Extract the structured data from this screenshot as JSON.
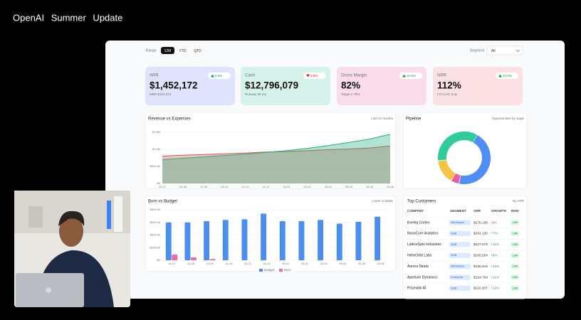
{
  "header": {
    "title": "OpenAI Summer Update"
  },
  "controls": {
    "range_label": "Range",
    "range_options": [
      "12M",
      "YTD",
      "QTD"
    ],
    "segment_label": "Segment",
    "segment_value": "All"
  },
  "kpis": [
    {
      "label": "ARR",
      "value": "$1,452,172",
      "change": "4.8%",
      "trend": "up",
      "note": "MRR $121,014"
    },
    {
      "label": "Cash",
      "value": "$12,796,079",
      "change": "3.8%",
      "trend": "down",
      "note": "Runway 38 mo"
    },
    {
      "label": "Gross Margin",
      "value": "82%",
      "change": "10.5%",
      "trend": "up",
      "note": "Target ≥ 78%"
    },
    {
      "label": "NRR",
      "value": "112%",
      "change": "12.6%",
      "trend": "up",
      "note": "LTV:CAC 5.6x"
    }
  ],
  "chart_data": [
    {
      "type": "area",
      "title": "Revenue vs Expenses",
      "note": "Last 12 months",
      "categories": [
        "24-07",
        "24-08",
        "24-09",
        "24-10",
        "24-11",
        "24-12",
        "25-01",
        "25-02",
        "25-03",
        "25-04",
        "25-05",
        "25-06"
      ],
      "series": [
        {
          "color": "#d9534f",
          "values": [
            800000,
            830000,
            850000,
            870000,
            890000,
            920000,
            940000,
            960000,
            990000,
            1010000,
            1040000,
            1100000
          ]
        },
        {
          "color": "#22b07d",
          "values": [
            700000,
            740000,
            780000,
            820000,
            860000,
            910000,
            960000,
            1030000,
            1110000,
            1200000,
            1300000,
            1440000
          ]
        }
      ],
      "ylim": [
        0,
        1500000
      ],
      "yticks": [
        {
          "value": 0,
          "label": "$0"
        },
        {
          "value": 500000,
          "label": "$500.0k"
        },
        {
          "value": 1000000,
          "label": "$1.0M"
        },
        {
          "value": 1500000,
          "label": "$1.5M"
        }
      ],
      "grid": true
    },
    {
      "type": "donut",
      "title": "Pipeline",
      "note": "Opportunities by stage",
      "values": [
        45,
        5,
        15,
        35
      ],
      "colors": [
        "#4f8ef7",
        "#f05aa0",
        "#f6c344",
        "#2ecc9a"
      ]
    },
    {
      "type": "bar",
      "title": "Burn vs Budget",
      "note": "Lower is better",
      "categories": [
        "24-07",
        "24-08",
        "24-09",
        "24-10",
        "24-11",
        "24-12",
        "25-01",
        "25-02",
        "25-03",
        "25-04",
        "25-05",
        "25-06"
      ],
      "series": [
        {
          "name": "Budget",
          "color": "#4a8ef0",
          "values": [
            600000,
            600000,
            620000,
            640000,
            650000,
            740000,
            620000,
            620000,
            640000,
            580000,
            610000,
            690000
          ]
        },
        {
          "name": "Burn",
          "color": "#f06aa8",
          "values": [
            90000,
            45000,
            20000,
            0,
            0,
            0,
            0,
            0,
            0,
            0,
            0,
            0
          ]
        }
      ],
      "ylim": [
        0,
        800000
      ],
      "yticks": [
        {
          "value": 0,
          "label": "$0"
        },
        {
          "value": 200000,
          "label": "$200.0k"
        },
        {
          "value": 400000,
          "label": "$400.0k"
        },
        {
          "value": 600000,
          "label": "$600.0k"
        },
        {
          "value": 800000,
          "label": "$800.0k"
        }
      ],
      "grid": true
    }
  ],
  "table": {
    "title": "Top Customers",
    "note": "By ARR",
    "columns": [
      "COMPANY",
      "SEGMENT",
      "ARR",
      "GROWTH",
      "RISK"
    ],
    "rows": [
      [
        "Kinetiq Cortex",
        "Mid-Market",
        "$276,196",
        "-2%",
        "Low"
      ],
      [
        "NovaCore Analytics",
        "SMB",
        "$264,130",
        "+7%",
        "Low"
      ],
      [
        "LatticeSpin Industries",
        "SMB",
        "$227,675",
        "+11%",
        "Low"
      ],
      [
        "HelixOrbit Labs",
        "SMB",
        "$165,554",
        "+9%",
        "Low"
      ],
      [
        "Aurora Strata",
        "Mid-Market",
        "$156,816",
        "+12%",
        "Low"
      ],
      [
        "Aperture Dynamics",
        "Enterprise",
        "$154,794",
        "+11%",
        "Low"
      ],
      [
        "Prismatix AI",
        "SMB",
        "$115,387",
        "+12%",
        "Low"
      ]
    ]
  }
}
